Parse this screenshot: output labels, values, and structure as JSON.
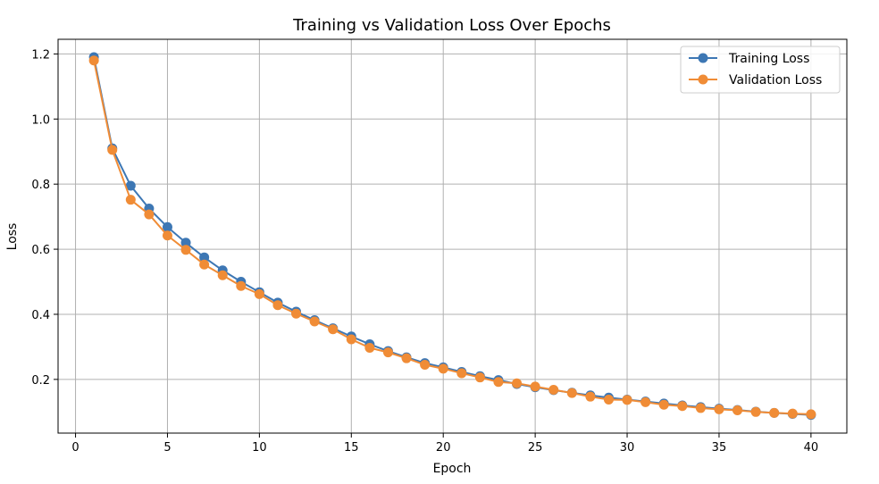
{
  "chart_data": {
    "type": "line",
    "title": "Training vs Validation Loss Over Epochs",
    "xlabel": "Epoch",
    "ylabel": "Loss",
    "xlim": [
      -0.95,
      41.95
    ],
    "ylim": [
      0.035,
      1.245
    ],
    "xticks": [
      0,
      5,
      10,
      15,
      20,
      25,
      30,
      35,
      40
    ],
    "xtick_labels": [
      "0",
      "5",
      "10",
      "15",
      "20",
      "25",
      "30",
      "35",
      "40"
    ],
    "yticks": [
      0.2,
      0.4,
      0.6,
      0.8,
      1.0,
      1.2
    ],
    "ytick_labels": [
      "0.2",
      "0.4",
      "0.6",
      "0.8",
      "1.0",
      "1.2"
    ],
    "grid": true,
    "legend_position": "top-right",
    "x": [
      1,
      2,
      3,
      4,
      5,
      6,
      7,
      8,
      9,
      10,
      11,
      12,
      13,
      14,
      15,
      16,
      17,
      18,
      19,
      20,
      21,
      22,
      23,
      24,
      25,
      26,
      27,
      28,
      29,
      30,
      31,
      32,
      33,
      34,
      35,
      36,
      37,
      38,
      39,
      40
    ],
    "series": [
      {
        "name": "Training Loss",
        "color": "#3d77b4",
        "marker": "circle",
        "values": [
          1.19,
          0.91,
          0.795,
          0.725,
          0.668,
          0.62,
          0.575,
          0.535,
          0.5,
          0.468,
          0.436,
          0.408,
          0.382,
          0.357,
          0.332,
          0.308,
          0.287,
          0.268,
          0.25,
          0.237,
          0.223,
          0.21,
          0.198,
          0.186,
          0.176,
          0.167,
          0.159,
          0.151,
          0.144,
          0.138,
          0.132,
          0.126,
          0.12,
          0.115,
          0.11,
          0.106,
          0.101,
          0.097,
          0.094,
          0.091
        ]
      },
      {
        "name": "Validation Loss",
        "color": "#f08c36",
        "marker": "circle",
        "values": [
          1.18,
          0.905,
          0.752,
          0.707,
          0.642,
          0.598,
          0.553,
          0.52,
          0.487,
          0.462,
          0.428,
          0.402,
          0.378,
          0.354,
          0.323,
          0.297,
          0.283,
          0.265,
          0.245,
          0.233,
          0.219,
          0.206,
          0.192,
          0.188,
          0.178,
          0.168,
          0.158,
          0.147,
          0.138,
          0.137,
          0.13,
          0.122,
          0.118,
          0.112,
          0.108,
          0.105,
          0.1,
          0.097,
          0.095,
          0.093
        ]
      }
    ]
  }
}
